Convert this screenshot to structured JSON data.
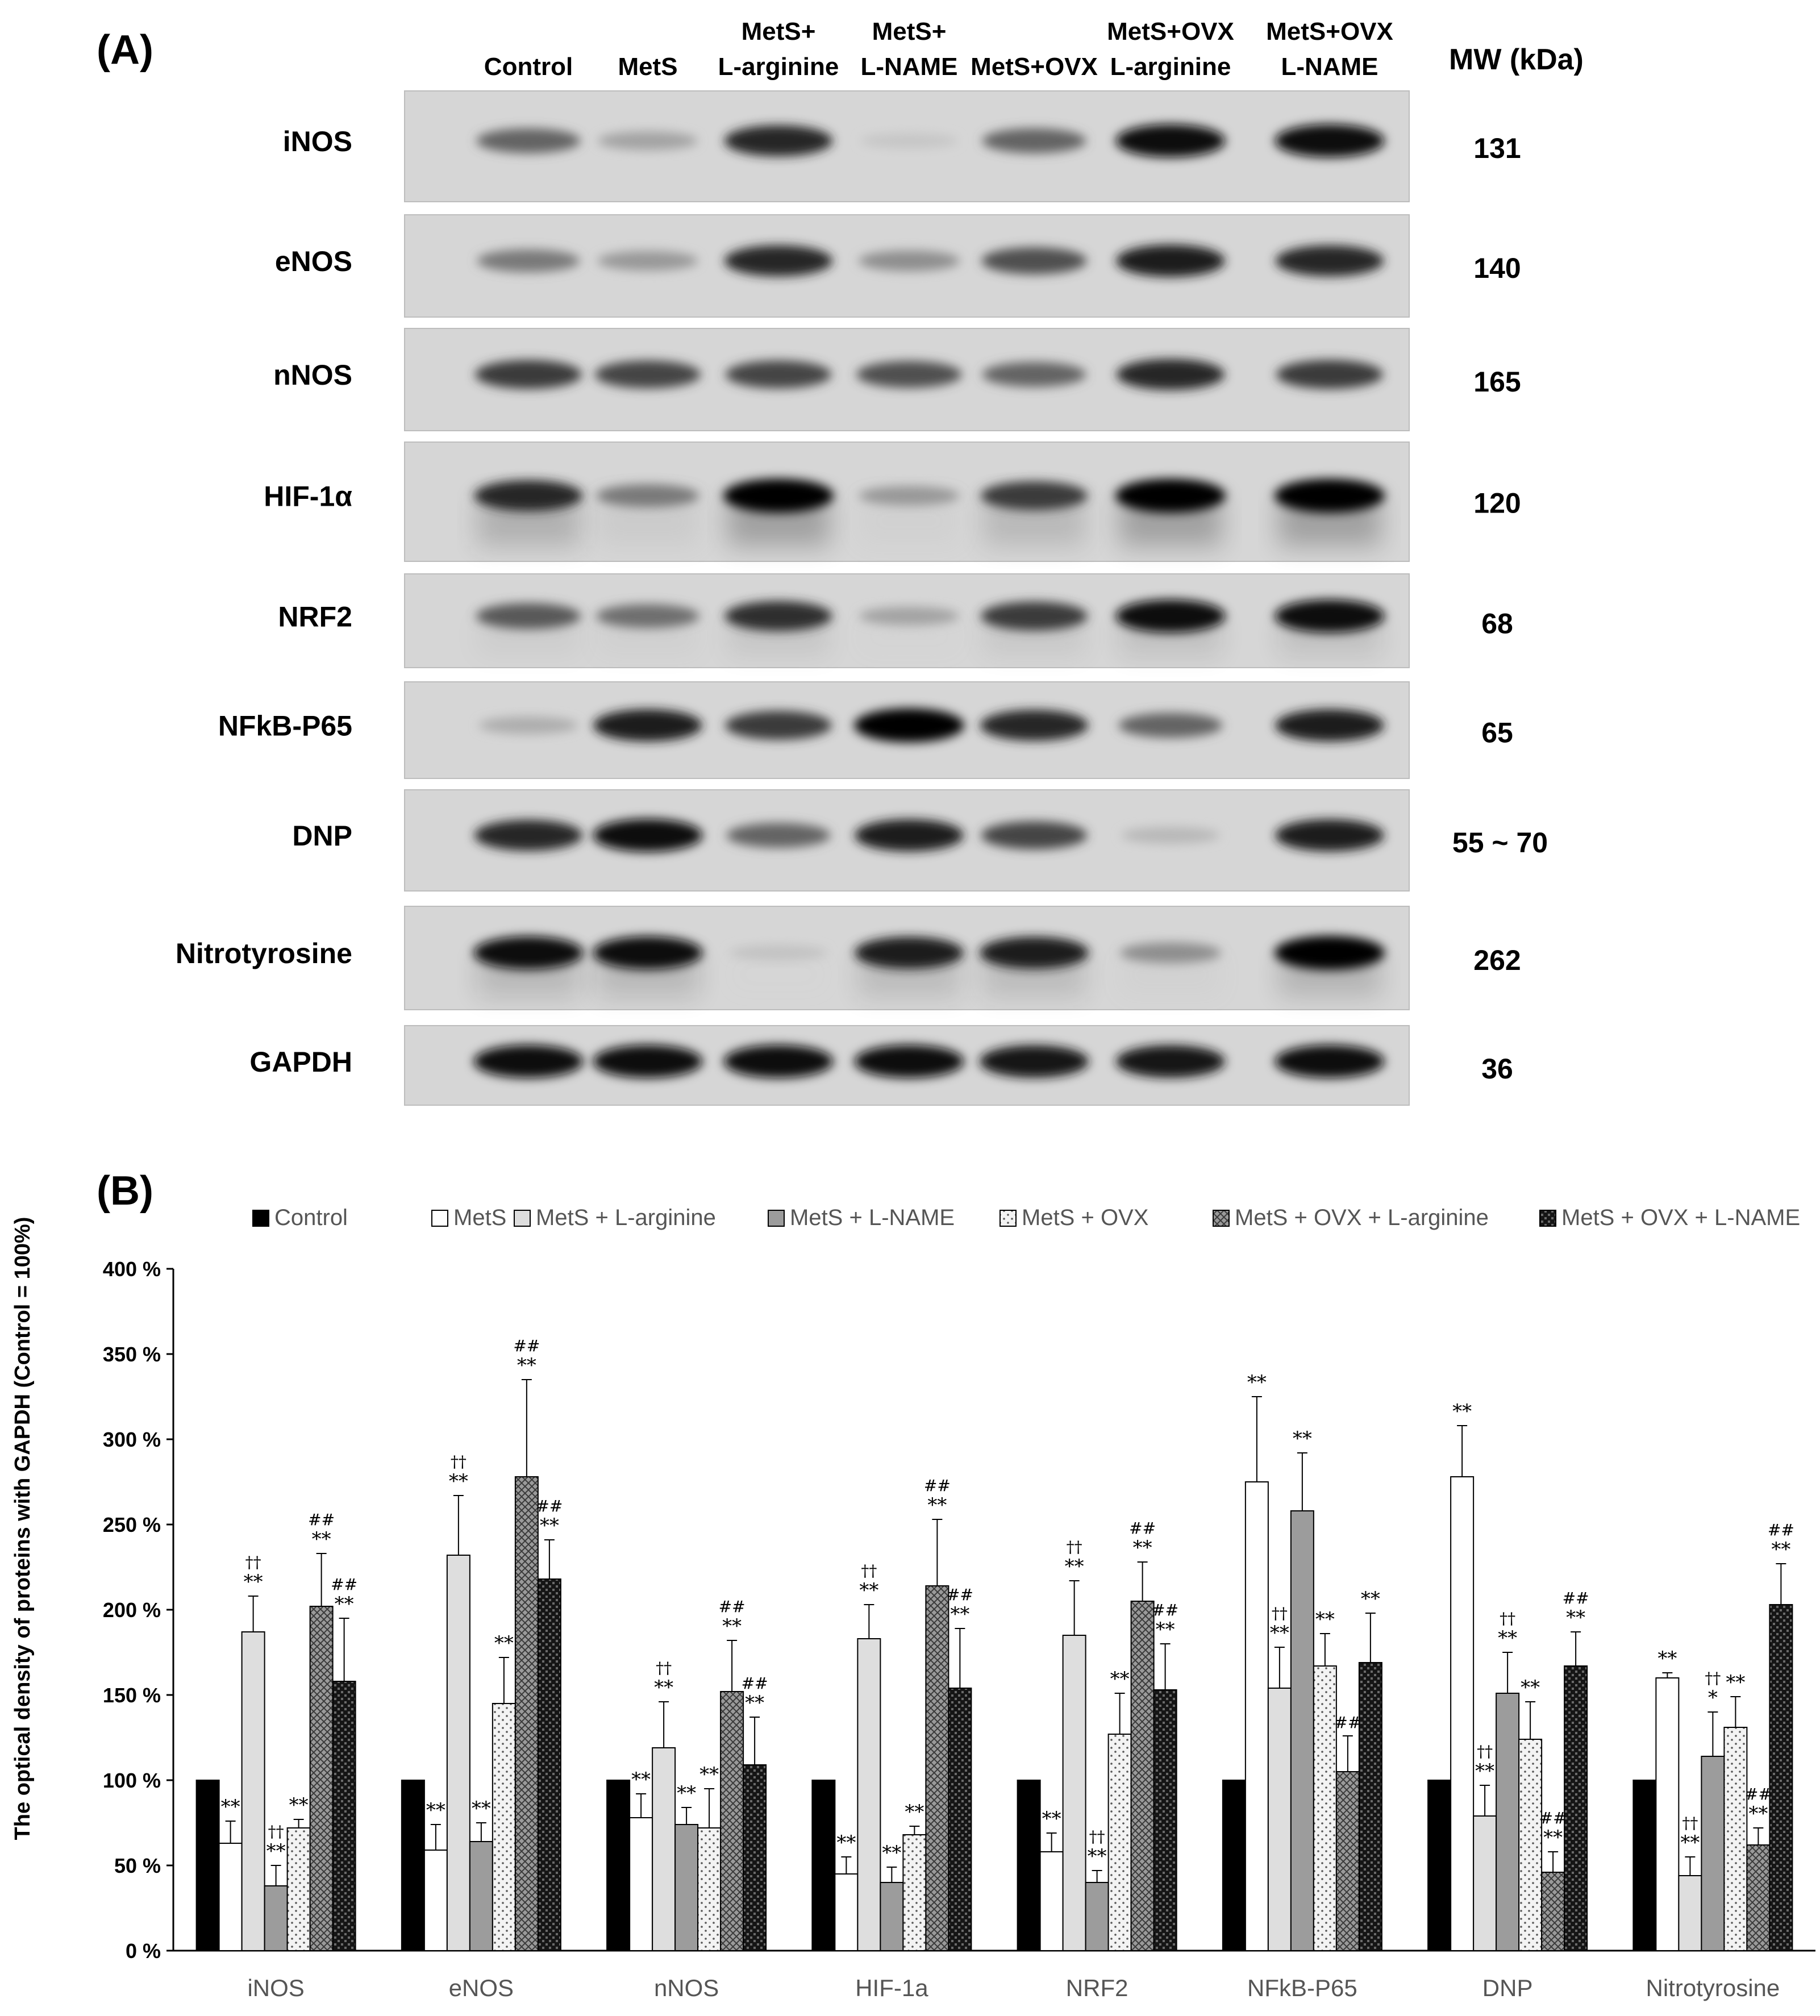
{
  "panel_a": {
    "label": "(A)",
    "mw_header": "MW (kDa)",
    "lanes": [
      {
        "line1": "",
        "line2": "Control"
      },
      {
        "line1": "",
        "line2": "MetS"
      },
      {
        "line1": "MetS+",
        "line2": "L-arginine"
      },
      {
        "line1": "MetS+",
        "line2": "L-NAME"
      },
      {
        "line1": "",
        "line2": "MetS+OVX"
      },
      {
        "line1": "MetS+OVX",
        "line2": "L-arginine"
      },
      {
        "line1": "MetS+OVX",
        "line2": "L-NAME"
      }
    ],
    "blots": [
      {
        "protein": "iNOS",
        "mw": "131",
        "intensity": [
          0.55,
          0.25,
          0.85,
          0.08,
          0.55,
          0.95,
          0.95
        ],
        "smear": 0.2
      },
      {
        "protein": "eNOS",
        "mw": "140",
        "intensity": [
          0.45,
          0.3,
          0.85,
          0.35,
          0.65,
          0.9,
          0.85
        ],
        "smear": 0.2
      },
      {
        "protein": "nNOS",
        "mw": "165",
        "intensity": [
          0.75,
          0.7,
          0.7,
          0.65,
          0.55,
          0.85,
          0.75
        ],
        "smear": 0.1
      },
      {
        "protein": "HIF-1α",
        "mw": "120",
        "intensity": [
          0.85,
          0.45,
          1.0,
          0.3,
          0.75,
          1.0,
          1.0
        ],
        "smear": 0.55
      },
      {
        "protein": "NRF2",
        "mw": "68",
        "intensity": [
          0.6,
          0.5,
          0.8,
          0.25,
          0.75,
          0.95,
          0.95
        ],
        "smear": 0.25
      },
      {
        "protein": "NFkB-P65",
        "mw": "65",
        "intensity": [
          0.2,
          0.9,
          0.75,
          1.0,
          0.85,
          0.55,
          0.9
        ],
        "smear": 0.1
      },
      {
        "protein": "DNP",
        "mw": "55 ~ 70",
        "intensity": [
          0.85,
          0.95,
          0.55,
          0.9,
          0.7,
          0.15,
          0.9
        ],
        "smear": 0.15
      },
      {
        "protein": "Nitrotyrosine",
        "mw": "262",
        "intensity": [
          0.95,
          0.95,
          0.1,
          0.9,
          0.9,
          0.35,
          1.0
        ],
        "smear": 0.35
      },
      {
        "protein": "GAPDH",
        "mw": "36",
        "intensity": [
          0.95,
          0.95,
          0.95,
          0.95,
          0.92,
          0.92,
          0.95
        ],
        "smear": 0.05
      }
    ]
  },
  "chart_data": {
    "type": "bar",
    "panel_label": "(B)",
    "ylabel": "The optical density of proteins with GAPDH (Control = 100%)",
    "xlabel": "",
    "ylim": [
      0,
      400
    ],
    "yticks": [
      "0 %",
      "50 %",
      "100 %",
      "150 %",
      "200 %",
      "250 %",
      "300 %",
      "350 %",
      "400 %"
    ],
    "legend_placement": "top",
    "categories": [
      "iNOS",
      "eNOS",
      "nNOS",
      "HIF-1a",
      "NRF2",
      "NFkB-P65",
      "DNP",
      "Nitrotyrosine"
    ],
    "series": [
      {
        "name": "Control",
        "pattern": "black",
        "values": [
          100,
          100,
          100,
          100,
          100,
          100,
          100,
          100
        ],
        "errors": [
          0,
          0,
          0,
          0,
          0,
          0,
          0,
          0
        ],
        "annotations": [
          [],
          [],
          [],
          [],
          [],
          [],
          [],
          []
        ]
      },
      {
        "name": "MetS",
        "pattern": "white",
        "values": [
          63,
          59,
          78,
          45,
          58,
          275,
          278,
          160
        ],
        "errors": [
          13,
          15,
          14,
          10,
          11,
          50,
          30,
          3
        ],
        "annotations": [
          [
            "**"
          ],
          [
            "**"
          ],
          [
            "**"
          ],
          [
            "**"
          ],
          [
            "**"
          ],
          [
            "**"
          ],
          [
            "**"
          ],
          [
            "**"
          ]
        ]
      },
      {
        "name": "MetS + L-arginine",
        "pattern": "light-gray",
        "values": [
          187,
          232,
          119,
          183,
          185,
          154,
          79,
          44
        ],
        "errors": [
          21,
          35,
          27,
          20,
          32,
          24,
          18,
          11
        ],
        "annotations": [
          [
            "††",
            "**"
          ],
          [
            "††",
            "**"
          ],
          [
            "††",
            "**"
          ],
          [
            "††",
            "**"
          ],
          [
            "††",
            "**"
          ],
          [
            "††",
            "**"
          ],
          [
            "††",
            "**"
          ],
          [
            "††",
            "**"
          ]
        ]
      },
      {
        "name": "MetS + L-NAME",
        "pattern": "gray",
        "values": [
          38,
          64,
          74,
          40,
          40,
          258,
          151,
          114
        ],
        "errors": [
          12,
          11,
          10,
          9,
          7,
          34,
          24,
          26
        ],
        "annotations": [
          [
            "††",
            "**"
          ],
          [
            "**"
          ],
          [
            "**"
          ],
          [
            "**"
          ],
          [
            "††",
            "**"
          ],
          [
            "**"
          ],
          [
            "††",
            "**"
          ],
          [
            "††",
            "*"
          ]
        ]
      },
      {
        "name": "MetS + OVX",
        "pattern": "dotted",
        "values": [
          72,
          145,
          72,
          68,
          127,
          167,
          124,
          131
        ],
        "errors": [
          5,
          27,
          23,
          5,
          24,
          19,
          22,
          18
        ],
        "annotations": [
          [
            "**"
          ],
          [
            "**"
          ],
          [
            "**"
          ],
          [
            "**"
          ],
          [
            "**"
          ],
          [
            "**"
          ],
          [
            "**"
          ],
          [
            "**"
          ]
        ]
      },
      {
        "name": "MetS + OVX + L-arginine",
        "pattern": "crosshatch",
        "values": [
          202,
          278,
          152,
          214,
          205,
          105,
          46,
          62
        ],
        "errors": [
          31,
          57,
          30,
          39,
          23,
          21,
          12,
          10
        ],
        "annotations": [
          [
            "##",
            "**"
          ],
          [
            "##",
            "**"
          ],
          [
            "##",
            "**"
          ],
          [
            "##",
            "**"
          ],
          [
            "##",
            "**"
          ],
          [
            "##"
          ],
          [
            "##",
            "**"
          ],
          [
            "##",
            "**"
          ]
        ]
      },
      {
        "name": "MetS + OVX + L-NAME",
        "pattern": "dark-check",
        "values": [
          158,
          218,
          109,
          154,
          153,
          169,
          167,
          203
        ],
        "errors": [
          37,
          23,
          28,
          35,
          27,
          29,
          20,
          24
        ],
        "annotations": [
          [
            "##",
            "**"
          ],
          [
            "##",
            "**"
          ],
          [
            "##",
            "**"
          ],
          [
            "##",
            "**"
          ],
          [
            "##",
            "**"
          ],
          [
            "**"
          ],
          [
            "##",
            "**"
          ],
          [
            "##",
            "**"
          ]
        ]
      }
    ]
  }
}
